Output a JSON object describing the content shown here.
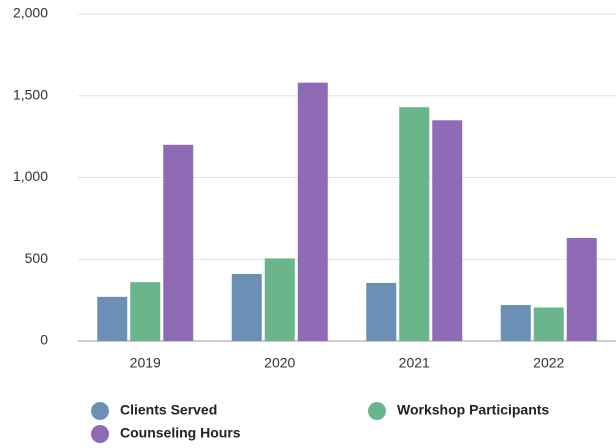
{
  "chart_data": {
    "type": "bar",
    "categories": [
      "2019",
      "2020",
      "2021",
      "2022"
    ],
    "series": [
      {
        "name": "Clients Served",
        "color": "#6b8fb5",
        "values": [
          270,
          410,
          355,
          220
        ]
      },
      {
        "name": "Workshop Participants",
        "color": "#6ab58c",
        "values": [
          360,
          505,
          1430,
          205
        ]
      },
      {
        "name": "Counseling Hours",
        "color": "#8f6bb5",
        "values": [
          1200,
          1580,
          1350,
          630
        ]
      }
    ],
    "ylim": [
      0,
      2000
    ],
    "yticks": [
      0,
      {
        "value": 500,
        "label": "500"
      },
      {
        "value": 1000,
        "label": "1,000"
      },
      {
        "value": 1500,
        "label": "1,500"
      },
      {
        "value": 2000,
        "label": "2,000"
      }
    ],
    "grid": true
  }
}
